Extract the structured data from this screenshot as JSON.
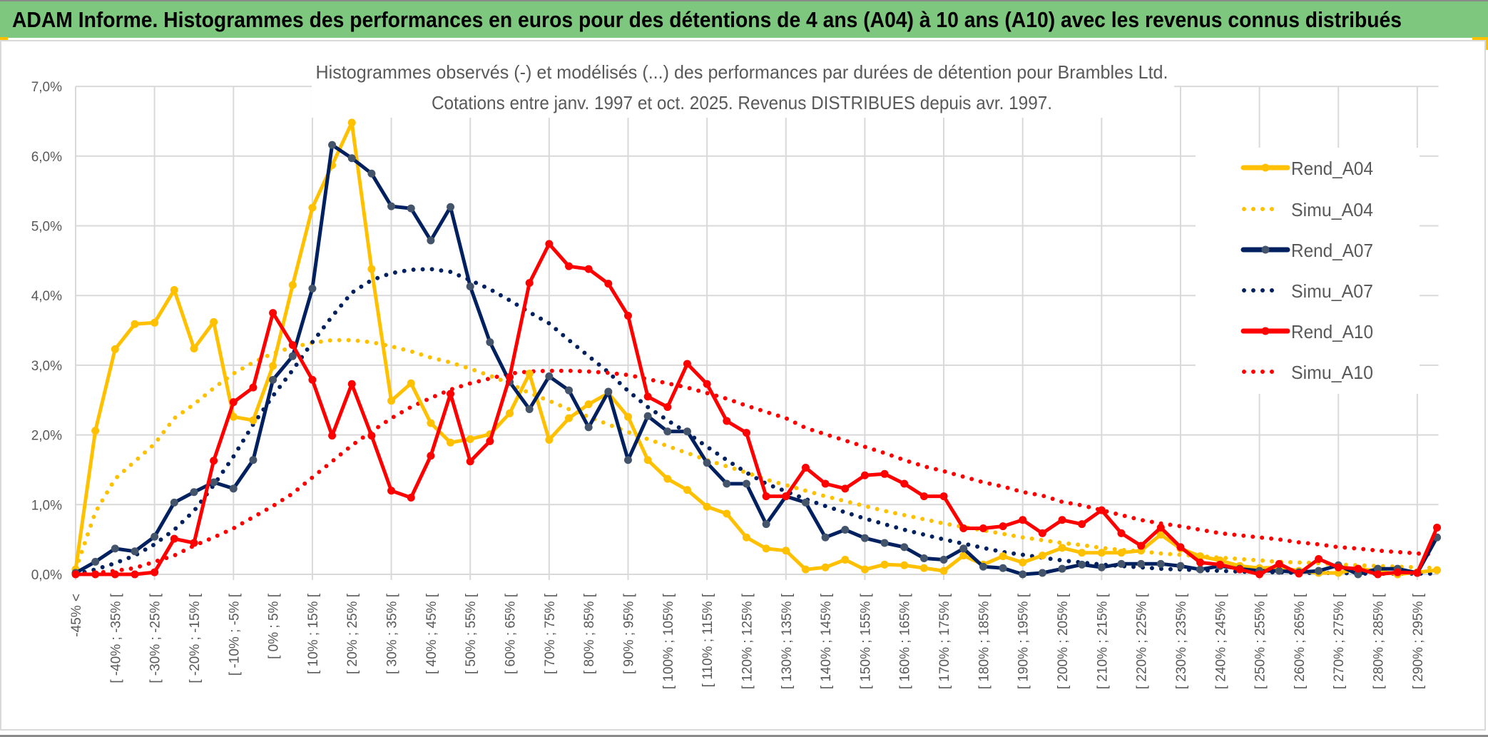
{
  "header": {
    "title": "ADAM Informe. Histogrammes des performances en euros pour des détentions de 4 ans (A04) à 10 ans (A10) avec les revenus connus distribués",
    "background_color": "#7EC77F"
  },
  "chart_data": {
    "type": "line",
    "title_line1": "Histogrammes observés (-) et modélisés (...) des performances par durées de détention pour Brambles Ltd.",
    "title_line2": "Cotations entre janv. 1997 et oct. 2025. Revenus DISTRIBUES depuis avr. 1997.",
    "xlabel": "",
    "ylabel": "",
    "ylim": [
      0,
      7
    ],
    "y_tick_labels": [
      "0,0%",
      "1,0%",
      "2,0%",
      "3,0%",
      "4,0%",
      "5,0%",
      "6,0%",
      "7,0%"
    ],
    "x_tick_labels": [
      "-45% <",
      "[ -40% ; -35% [",
      "[ -30% ; -25% [",
      "[ -20% ; -15% [",
      "[ -10% ; -5% [",
      "[ 0% ; 5% [",
      "[ 10% ; 15% [",
      "[ 20% ; 25% [",
      "[ 30% ; 35% [",
      "[ 40% ; 45% [",
      "[ 50% ; 55% [",
      "[ 60% ; 65% [",
      "[ 70% ; 75% [",
      "[ 80% ; 85% [",
      "[ 90% ; 95% [",
      "[ 100% ; 105% [",
      "[ 110% ; 115% [",
      "[ 120% ; 125% [",
      "[ 130% ; 135% [",
      "[ 140% ; 145% [",
      "[ 150% ; 155% [",
      "[ 160% ; 165% [",
      "[ 170% ; 175% [",
      "[ 180% ; 185% [",
      "[ 190% ; 195% [",
      "[ 200% ; 205% [",
      "[ 210% ; 215% [",
      "[ 220% ; 225% [",
      "[ 230% ; 235% [",
      "[ 240% ; 245% [",
      "[ 250% ; 255% [",
      "[ 260% ; 265% [",
      "[ 270% ; 275% [",
      "[ 280% ; 285% [",
      "[ 290% ; 295% ["
    ],
    "x_tick_every": 2,
    "value_unit": "%",
    "grid": true,
    "legend_position": "right",
    "series": [
      {
        "name": "Rend_A04",
        "style": "solid-markers",
        "color": "#FFC000",
        "marker_color": "#FFC000",
        "values": [
          0.07,
          2.06,
          3.23,
          3.59,
          3.61,
          4.08,
          3.24,
          3.62,
          2.26,
          2.21,
          2.99,
          4.15,
          5.26,
          5.87,
          6.48,
          4.38,
          2.49,
          2.74,
          2.17,
          1.89,
          1.94,
          2.01,
          2.31,
          2.88,
          1.93,
          2.24,
          2.44,
          2.6,
          2.26,
          1.64,
          1.37,
          1.21,
          0.97,
          0.87,
          0.53,
          0.37,
          0.34,
          0.07,
          0.1,
          0.21,
          0.07,
          0.14,
          0.13,
          0.09,
          0.05,
          0.27,
          0.14,
          0.26,
          0.17,
          0.27,
          0.38,
          0.31,
          0.31,
          0.31,
          0.34,
          0.57,
          0.37,
          0.26,
          0.2,
          0.12,
          0.09,
          0.1,
          0.05,
          0.02,
          0.02,
          0.08,
          0.05,
          0.0,
          0.03,
          0.06
        ]
      },
      {
        "name": "Simu_A04",
        "style": "dotted",
        "color": "#FFC000",
        "values": [
          0.07,
          0.89,
          1.37,
          1.62,
          1.87,
          2.24,
          2.44,
          2.67,
          2.88,
          3.04,
          3.17,
          3.26,
          3.32,
          3.36,
          3.36,
          3.33,
          3.27,
          3.2,
          3.11,
          3.04,
          2.95,
          2.85,
          2.74,
          2.6,
          2.49,
          2.37,
          2.26,
          2.15,
          2.04,
          1.94,
          1.84,
          1.74,
          1.64,
          1.55,
          1.46,
          1.36,
          1.28,
          1.2,
          1.12,
          1.05,
          0.98,
          0.91,
          0.85,
          0.79,
          0.73,
          0.68,
          0.63,
          0.58,
          0.53,
          0.49,
          0.45,
          0.42,
          0.38,
          0.35,
          0.33,
          0.3,
          0.28,
          0.26,
          0.24,
          0.22,
          0.2,
          0.18,
          0.17,
          0.16,
          0.14,
          0.13,
          0.12,
          0.11,
          0.1,
          0.09
        ]
      },
      {
        "name": "Rend_A07",
        "style": "solid-markers",
        "color": "#002060",
        "marker_color": "#44546A",
        "values": [
          0.02,
          0.18,
          0.37,
          0.33,
          0.54,
          1.03,
          1.18,
          1.32,
          1.23,
          1.64,
          2.79,
          3.13,
          4.1,
          6.16,
          5.97,
          5.75,
          5.28,
          5.25,
          4.79,
          5.27,
          4.13,
          3.33,
          2.76,
          2.37,
          2.84,
          2.64,
          2.11,
          2.62,
          1.64,
          2.27,
          2.05,
          2.05,
          1.6,
          1.3,
          1.3,
          0.72,
          1.12,
          1.03,
          0.53,
          0.64,
          0.52,
          0.45,
          0.39,
          0.23,
          0.21,
          0.37,
          0.11,
          0.09,
          0.0,
          0.02,
          0.08,
          0.14,
          0.1,
          0.15,
          0.15,
          0.15,
          0.12,
          0.07,
          0.12,
          0.08,
          0.05,
          0.05,
          0.03,
          0.05,
          0.13,
          0.0,
          0.08,
          0.08,
          0.02,
          0.53
        ]
      },
      {
        "name": "Simu_A07",
        "style": "dotted",
        "color": "#002060",
        "values": [
          0.0,
          0.07,
          0.16,
          0.27,
          0.43,
          0.64,
          0.91,
          1.28,
          1.69,
          2.15,
          2.56,
          2.93,
          3.33,
          3.7,
          4.04,
          4.22,
          4.32,
          4.37,
          4.38,
          4.34,
          4.22,
          4.09,
          3.93,
          3.76,
          3.6,
          3.36,
          3.13,
          2.9,
          2.63,
          2.4,
          2.21,
          2.03,
          1.83,
          1.64,
          1.46,
          1.3,
          1.19,
          1.08,
          0.98,
          0.89,
          0.8,
          0.72,
          0.64,
          0.57,
          0.5,
          0.44,
          0.38,
          0.32,
          0.28,
          0.24,
          0.2,
          0.17,
          0.14,
          0.12,
          0.1,
          0.08,
          0.07,
          0.06,
          0.05,
          0.04,
          0.03,
          0.03,
          0.02,
          0.02,
          0.02,
          0.01,
          0.01,
          0.01,
          0.01,
          0.01
        ]
      },
      {
        "name": "Rend_A10",
        "style": "solid-markers",
        "color": "#FF0000",
        "marker_color": "#FF0000",
        "values": [
          0.0,
          0.0,
          0.0,
          0.0,
          0.03,
          0.51,
          0.45,
          1.63,
          2.47,
          2.68,
          3.75,
          3.29,
          2.79,
          1.99,
          2.73,
          1.99,
          1.2,
          1.1,
          1.7,
          2.59,
          1.62,
          1.91,
          2.83,
          4.18,
          4.74,
          4.42,
          4.38,
          4.17,
          3.71,
          2.55,
          2.4,
          3.02,
          2.73,
          2.2,
          2.03,
          1.12,
          1.12,
          1.53,
          1.3,
          1.23,
          1.42,
          1.44,
          1.3,
          1.12,
          1.12,
          0.66,
          0.66,
          0.69,
          0.78,
          0.59,
          0.78,
          0.72,
          0.92,
          0.59,
          0.41,
          0.67,
          0.39,
          0.17,
          0.14,
          0.07,
          0.0,
          0.15,
          0.01,
          0.22,
          0.1,
          0.08,
          0.0,
          0.03,
          0.02,
          0.67
        ]
      },
      {
        "name": "Simu_A10",
        "style": "dotted",
        "color": "#FF0000",
        "values": [
          0.0,
          0.02,
          0.05,
          0.09,
          0.18,
          0.27,
          0.41,
          0.53,
          0.66,
          0.82,
          0.98,
          1.16,
          1.39,
          1.62,
          1.85,
          2.05,
          2.24,
          2.4,
          2.53,
          2.65,
          2.74,
          2.81,
          2.88,
          2.91,
          2.92,
          2.92,
          2.91,
          2.89,
          2.86,
          2.8,
          2.74,
          2.68,
          2.6,
          2.52,
          2.42,
          2.33,
          2.24,
          2.1,
          2.01,
          1.92,
          1.83,
          1.74,
          1.64,
          1.55,
          1.48,
          1.4,
          1.32,
          1.26,
          1.18,
          1.13,
          1.04,
          0.99,
          0.92,
          0.85,
          0.78,
          0.73,
          0.69,
          0.64,
          0.59,
          0.56,
          0.53,
          0.5,
          0.46,
          0.43,
          0.39,
          0.37,
          0.34,
          0.32,
          0.3,
          0.28
        ]
      }
    ]
  }
}
